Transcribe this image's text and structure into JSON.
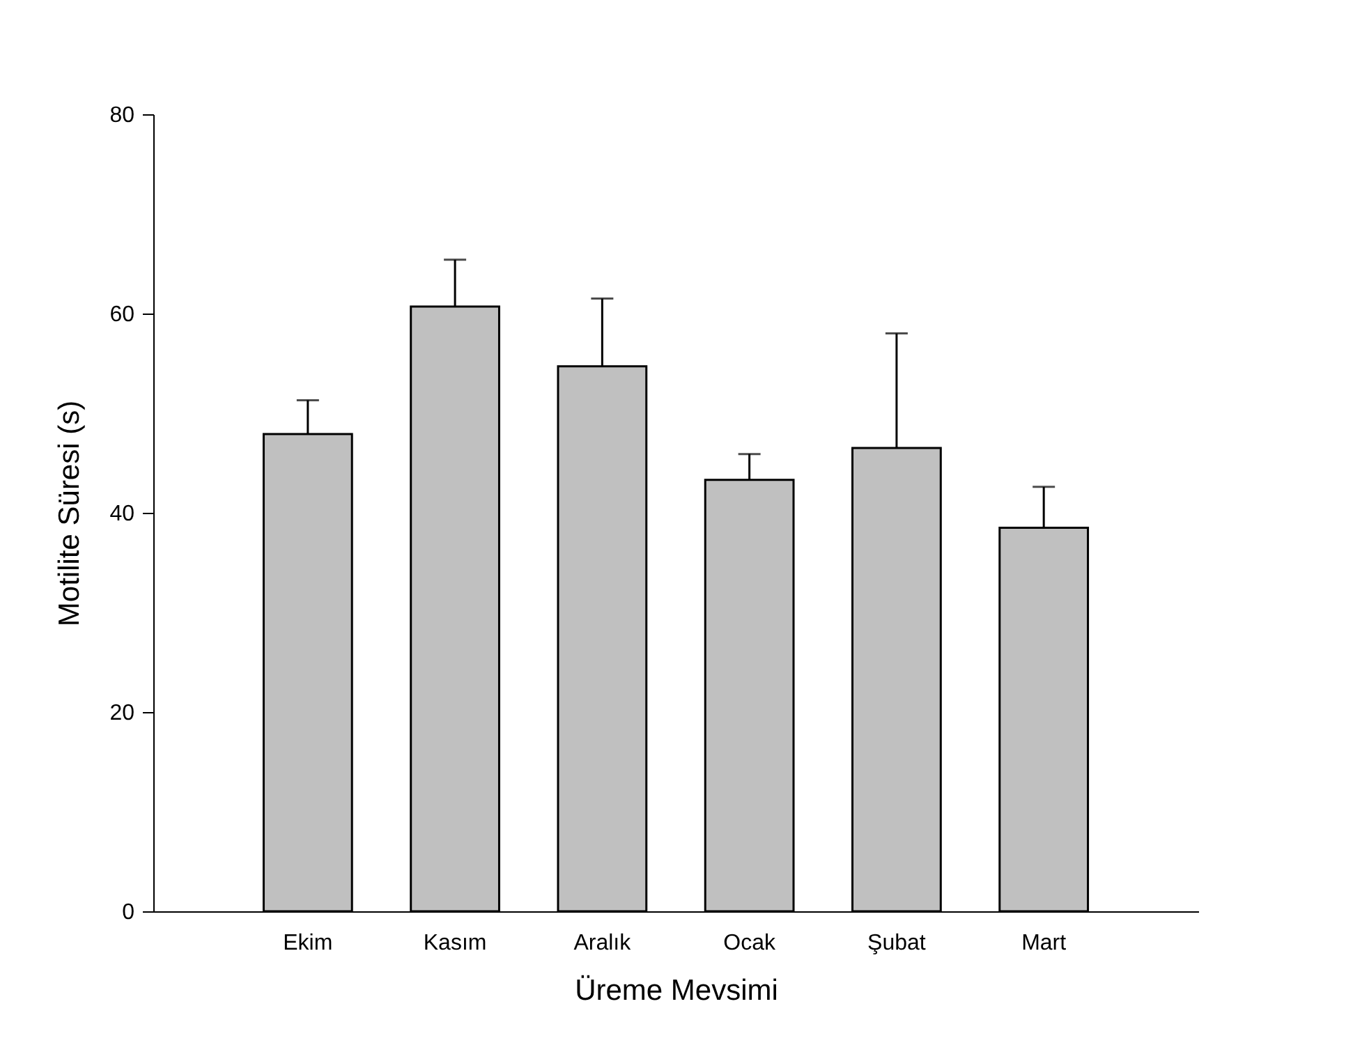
{
  "chart_data": {
    "type": "bar",
    "xlabel": "Üreme Mevsimi",
    "ylabel": "Motilite Süresi (s)",
    "categories": [
      "Ekim",
      "Kasım",
      "Aralık",
      "Ocak",
      "Şubat",
      "Mart"
    ],
    "values": [
      47.9,
      60.7,
      54.7,
      43.3,
      46.5,
      38.5
    ],
    "errors": [
      [
        47.9,
        51.3
      ],
      [
        60.7,
        65.4
      ],
      [
        54.7,
        61.5
      ],
      [
        43.3,
        45.9
      ],
      [
        46.5,
        58.0
      ],
      [
        38.5,
        42.6
      ]
    ],
    "color": "#c0c0c0",
    "ylim": [
      0,
      80
    ],
    "yticks": [
      0,
      20,
      40,
      60,
      80
    ],
    "grid": false
  }
}
